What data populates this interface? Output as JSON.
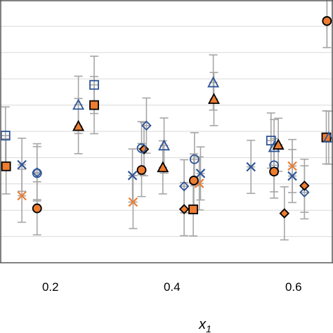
{
  "chart_data": {
    "type": "scatter",
    "xlabel": "x",
    "xlabel_subscript": "1",
    "xticks": [
      "0.2",
      "0.4",
      "0.6"
    ],
    "xlim": [
      0.117,
      0.665
    ],
    "ylim": [
      0,
      1
    ],
    "grid": "horizontal",
    "legend": "none",
    "error_bar_color": "#a6a6a6",
    "series": [
      {
        "shape": "square",
        "stroke": "#2f5597",
        "fill": "none",
        "x": [
          0.126,
          0.272,
          0.563
        ],
        "y": [
          0.484,
          0.677,
          0.465
        ],
        "err": [
          0.109,
          0.109,
          0.105
        ]
      },
      {
        "shape": "square",
        "stroke": "#000000",
        "fill": "#ed7d31",
        "x": [
          0.127,
          0.272,
          0.435,
          0.654
        ],
        "y": [
          0.367,
          0.6,
          0.203,
          0.477
        ],
        "err": [
          0.105,
          0.109,
          0.101,
          0.101
        ]
      },
      {
        "shape": "triangle",
        "stroke": "#2f5597",
        "fill": "none",
        "x": [
          0.246,
          0.387,
          0.468,
          0.568,
          0.658
        ],
        "y": [
          0.601,
          0.446,
          0.686,
          0.44,
          0.476
        ],
        "err": [
          0.109,
          0.105,
          0.105,
          0.105,
          0.101
        ]
      },
      {
        "shape": "triangle",
        "stroke": "#000000",
        "fill": "#ed7d31",
        "x": [
          0.246,
          0.385,
          0.469,
          0.575
        ],
        "y": [
          0.52,
          0.363,
          0.623,
          0.449
        ],
        "err": [
          0.105,
          0.101,
          0.101,
          0.101
        ]
      },
      {
        "shape": "cross",
        "stroke": "#2f5597",
        "x": [
          0.153,
          0.335,
          0.447,
          0.53,
          0.598
        ],
        "y": [
          0.373,
          0.332,
          0.34,
          0.365,
          0.33
        ],
        "err": [
          0.101,
          0.101,
          0.101,
          0.101,
          0.101
        ]
      },
      {
        "shape": "cross",
        "stroke": "#ed7d31",
        "x": [
          0.153,
          0.336,
          0.445,
          0.598
        ],
        "y": [
          0.255,
          0.231,
          0.302,
          0.368
        ],
        "err": [
          0.101,
          0.101,
          0.101,
          0.101
        ]
      },
      {
        "shape": "diamond",
        "stroke": "#2f5597",
        "fill": "none",
        "x": [
          0.178,
          0.358,
          0.42,
          0.618
        ],
        "y": [
          0.344,
          0.522,
          0.291,
          0.268
        ],
        "err": [
          0.109,
          0.105,
          0.101,
          0.101
        ]
      },
      {
        "shape": "diamond",
        "stroke": "#000000",
        "fill": "#ed7d31",
        "x": [
          0.354,
          0.42,
          0.585,
          0.618
        ],
        "y": [
          0.432,
          0.204,
          0.188,
          0.293
        ],
        "err": [
          0.101,
          0.101,
          0.101,
          0.101
        ]
      },
      {
        "shape": "circle",
        "stroke": "#2f5597",
        "fill": "none",
        "x": [
          0.178,
          0.35,
          0.437,
          0.568,
          0.655
        ],
        "y": [
          0.341,
          0.436,
          0.394,
          0.371,
          0.92
        ],
        "err": [
          0.101,
          0.101,
          0.101,
          0.101,
          0.101
        ]
      },
      {
        "shape": "circle",
        "stroke": "#000000",
        "fill": "#ed7d31",
        "x": [
          0.178,
          0.35,
          0.436,
          0.568,
          0.655
        ],
        "y": [
          0.207,
          0.353,
          0.313,
          0.347,
          0.92
        ],
        "err": [
          0.101,
          0.101,
          0.101,
          0.101,
          0.101
        ]
      }
    ]
  }
}
